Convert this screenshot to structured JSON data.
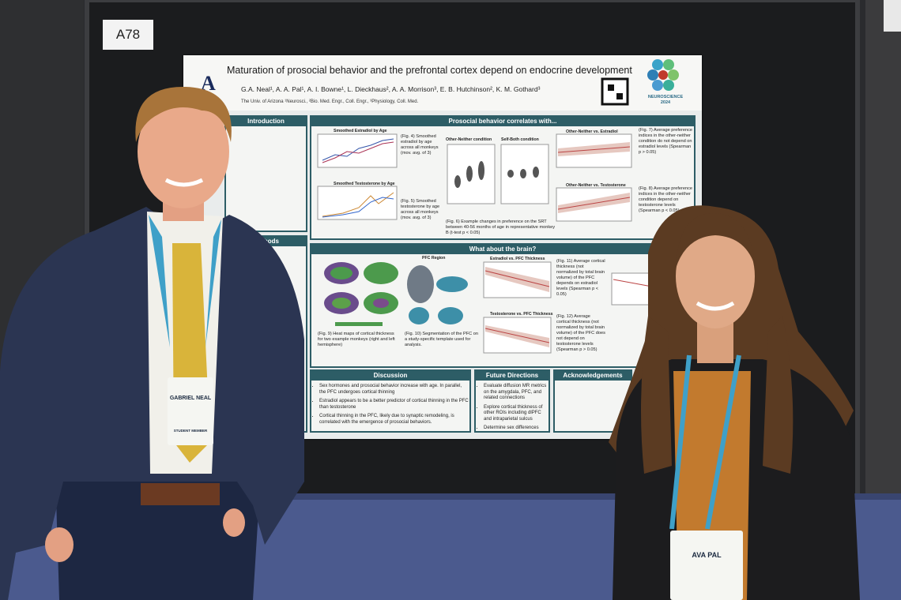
{
  "board_label": "A78",
  "poster": {
    "title": "Maturation of prosocial behavior and the prefrontal cortex depend on endocrine development",
    "authors": "G.A. Neal¹, A. A. Pal¹, A. I. Bowne¹, L. Dieckhaus², A. A. Morrison³, E. B. Hutchinson², K. M. Gothard³",
    "affiliations": "The Univ. of Arizona ¹Neurosci., ²Bio. Med. Engr., Coll. Engr., ³Physiology, Coll. Med.",
    "logo_text": "NEUROSCIENCE 2024",
    "sections": {
      "introduction": "Introduction",
      "methods": "Methods",
      "prosocial": "Prosocial behavior correlates with...",
      "brain": "What about the brain?",
      "discussion": "Discussion",
      "future": "Future Directions",
      "acknowledgements": "Acknowledgements"
    },
    "figure_titles": [
      "Smoothed Estradiol by Age",
      "Smoothed Testosterone by Age",
      "Other-Neither condition",
      "Self-Both condition",
      "Other-Neither vs. Estradiol",
      "Other-Neither vs. Testosterone",
      "PFC Region",
      "Estradiol vs. PFC Thickness",
      "Testosterone vs. PFC Thickness"
    ],
    "captions": [
      "(Fig. 4) Smoothed estradiol by age across all monkeys (mov. avg. of 3)",
      "(Fig. 5) Smoothed testosterone by age across all monkeys (mov. avg. of 3)",
      "(Fig. 6) Example changes in preference on the SRT between 40-56 months of age in representative monkey B (t-test p < 0.05)",
      "(Fig. 7) Average preference indices in the other-neither condition do not depend on estradiol levels (Spearman p > 0.05)",
      "(Fig. 8) Average preference indices in the other-neither condition depend on testosterone levels (Spearman p < 0.05)",
      "(Fig. 9) Heat maps of cortical thickness for two example monkeys (right and left hemisphere)",
      "(Fig. 10) Segmentation of the PFC on a study-specific template used for analysis.",
      "(Fig. 11) Average cortical thickness (not normalized by total brain volume) of the PFC depends on estradiol levels (Spearman p < 0.05)",
      "(Fig. 12) Average cortical thickness (not normalized by total brain volume) of the PFC does not depend on testosterone levels (Spearman p > 0.05)"
    ],
    "discussion_points": [
      "Sex hormones and prosocial behavior increase with age. In parallel, the PFC undergoes cortical thinning",
      "Estradiol appears to be a better predictor of cortical thinning in the PFC than testosterone",
      "Cortical thinning in the PFC, likely due to synaptic remodeling, is correlated with the emergence of prosocial behaviors."
    ],
    "future_points": [
      "Evaluate diffusion MR metrics on the amygdala, PFC, and related connections",
      "Explore cortical thickness of other ROIs including dlPFC and intraparietal sulcus",
      "Determine sex differences"
    ]
  },
  "badges": [
    {
      "name": "GABRIEL NEAL",
      "role": "STUDENT MEMBER"
    },
    {
      "name": "AVA PAL"
    }
  ]
}
